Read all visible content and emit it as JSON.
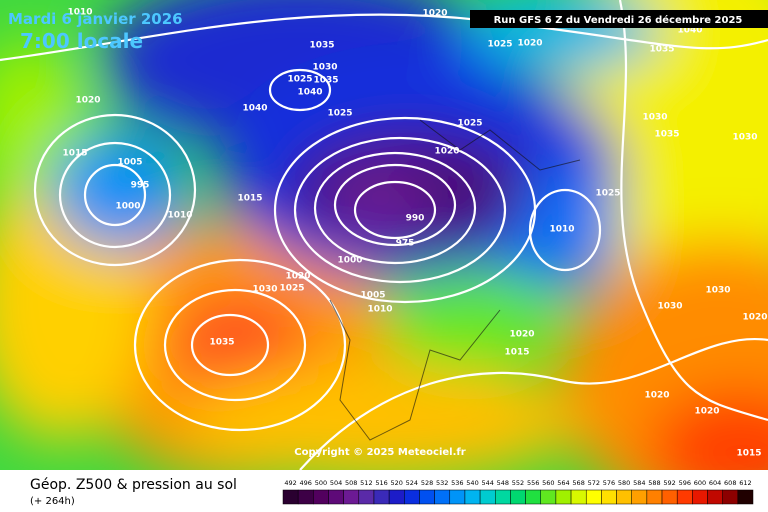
{
  "header": {
    "date": "Mardi 6 janvier 2026",
    "time": "7:00 locale",
    "run": "Run GFS 6 Z du Vendredi 26 décembre 2025"
  },
  "map": {
    "copyright": "Copyright © 2025 Meteociel.fr",
    "isobar_labels": [
      "1010",
      "1020",
      "1025",
      "1020",
      "1035",
      "1030",
      "1025",
      "1035",
      "1040",
      "1040",
      "1025",
      "1020",
      "1015",
      "1005",
      "995",
      "1000",
      "1010",
      "1015",
      "1025",
      "1020",
      "990",
      "975",
      "1000",
      "1020",
      "1030",
      "1025",
      "1005",
      "1010",
      "1035",
      "1010",
      "1025",
      "1030",
      "1035",
      "1030",
      "1035",
      "1030",
      "1030",
      "1020",
      "1020",
      "1015",
      "1020",
      "1020",
      "1015",
      "1040"
    ]
  },
  "footer": {
    "title": "Géop. Z500 & pression au sol",
    "lead": "(+ 264h)"
  },
  "legend": {
    "labels": [
      "492",
      "496",
      "500",
      "504",
      "508",
      "512",
      "516",
      "520",
      "524",
      "528",
      "532",
      "536",
      "540",
      "544",
      "548",
      "552",
      "556",
      "560",
      "564",
      "568",
      "572",
      "576",
      "580",
      "584",
      "588",
      "592",
      "596",
      "600",
      "604",
      "608",
      "612"
    ],
    "colors": [
      "#2a0030",
      "#3d0046",
      "#52005e",
      "#5e0a78",
      "#6c1a94",
      "#5a2aa8",
      "#3a2ab8",
      "#1c1cc8",
      "#0a2ee0",
      "#0050f0",
      "#0070f8",
      "#0094f8",
      "#00b4f0",
      "#00ccd0",
      "#00d8a0",
      "#00d870",
      "#20e040",
      "#60e820",
      "#a0f000",
      "#d8f800",
      "#ffff00",
      "#ffe000",
      "#ffc000",
      "#ffa000",
      "#ff8000",
      "#ff6000",
      "#ff3a00",
      "#e81800",
      "#c00800",
      "#8c0000",
      "#200000"
    ]
  }
}
